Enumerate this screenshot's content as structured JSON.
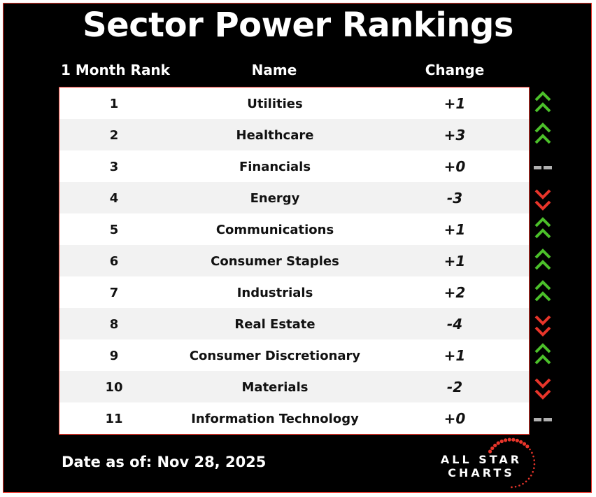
{
  "title": "Sector Power Rankings",
  "headers": {
    "rank": "1 Month Rank",
    "name": "Name",
    "change": "Change"
  },
  "rows": [
    {
      "rank": "1",
      "name": "Utilities",
      "change": "+1",
      "trend": "up"
    },
    {
      "rank": "2",
      "name": "Healthcare",
      "change": "+3",
      "trend": "up"
    },
    {
      "rank": "3",
      "name": "Financials",
      "change": "+0",
      "trend": "flat"
    },
    {
      "rank": "4",
      "name": "Energy",
      "change": "-3",
      "trend": "down"
    },
    {
      "rank": "5",
      "name": "Communications",
      "change": "+1",
      "trend": "up"
    },
    {
      "rank": "6",
      "name": "Consumer Staples",
      "change": "+1",
      "trend": "up"
    },
    {
      "rank": "7",
      "name": "Industrials",
      "change": "+2",
      "trend": "up"
    },
    {
      "rank": "8",
      "name": "Real Estate",
      "change": "-4",
      "trend": "down"
    },
    {
      "rank": "9",
      "name": "Consumer Discretionary",
      "change": "+1",
      "trend": "up"
    },
    {
      "rank": "10",
      "name": "Materials",
      "change": "-2",
      "trend": "down"
    },
    {
      "rank": "11",
      "name": "Information Technology",
      "change": "+0",
      "trend": "flat"
    }
  ],
  "footer": {
    "date": "Date as of: Nov 28, 2025",
    "logo_line1": "ALL STAR",
    "logo_line2": "CHARTS"
  },
  "colors": {
    "up": "#4cc02a",
    "down": "#e8352a",
    "flat": "#b0b0b0",
    "border": "#e8352a"
  }
}
